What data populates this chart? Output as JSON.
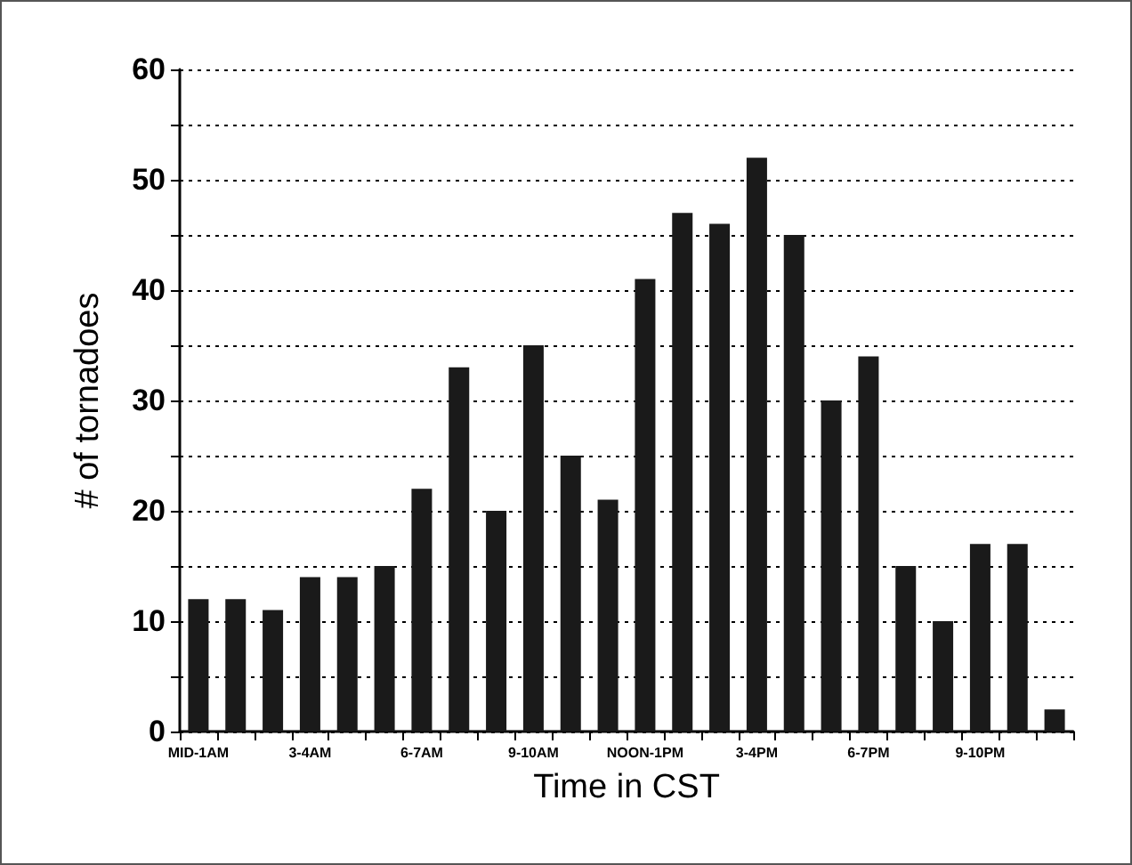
{
  "chart_data": {
    "type": "bar",
    "xlabel": "Time in CST",
    "ylabel": "# of tornadoes",
    "categories": [
      "MID-1AM",
      null,
      null,
      "3-4AM",
      null,
      null,
      "6-7AM",
      null,
      null,
      "9-10AM",
      null,
      null,
      "NOON-1PM",
      null,
      null,
      "3-4PM",
      null,
      null,
      "6-7PM",
      null,
      null,
      "9-10PM",
      null,
      null
    ],
    "values": [
      12,
      12,
      11,
      14,
      14,
      15,
      22,
      33,
      20,
      35,
      25,
      21,
      41,
      47,
      46,
      52,
      45,
      30,
      34,
      15,
      10,
      17,
      17,
      2
    ],
    "color": "#1a1a1a",
    "ylim": [
      0,
      60
    ],
    "yticks": [
      0,
      {
        "value": 5,
        "label": null
      },
      10,
      {
        "value": 15,
        "label": null
      },
      20,
      {
        "value": 25,
        "label": null
      },
      30,
      {
        "value": 35,
        "label": null
      },
      40,
      {
        "value": 45,
        "label": null
      },
      50,
      {
        "value": 55,
        "label": null
      },
      60
    ],
    "grid": "y"
  }
}
